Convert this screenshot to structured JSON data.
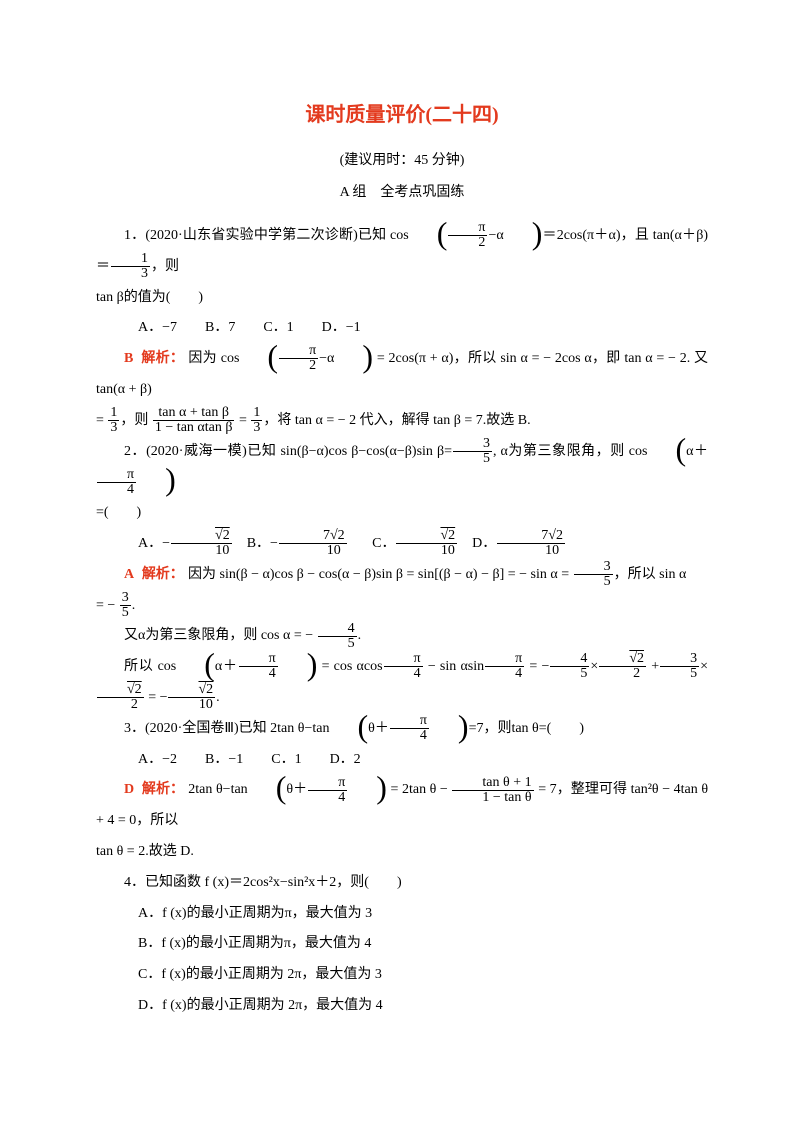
{
  "title": "课时质量评价(二十四)",
  "subtitle": "(建议用时：45 分钟)",
  "section_label": "A 组　全考点巩固练",
  "colors": {
    "accent": "#e33a1e",
    "text": "#000000",
    "bg": "#ffffff"
  },
  "typography": {
    "body_size": 14,
    "title_size": 20,
    "font_family": "SimSun"
  },
  "q1": {
    "number": "1．",
    "source": "(2020·山东省实验中学第二次诊断)",
    "stem_a": "已知 cos",
    "paren_inner_a": "π",
    "paren_inner_b": "2",
    "paren_inner_c": "−α",
    "stem_b": "＝2cos(π＋α)，且 tan(α＋β)＝",
    "frac1_num": "1",
    "frac1_den": "3",
    "stem_c": "，则",
    "line2": "tan β的值为(　　)",
    "choices": "A．−7　　B．7　　C．1　　D．−1",
    "answer": "B",
    "explain_label": "解析：",
    "exp_a": "因为 cos",
    "exp_b": "= 2cos(π + α)，所以 sin α = − 2cos α，即 tan α = − 2. 又 tan(α + β)",
    "exp_c": "=",
    "exp_frac1_num": "1",
    "exp_frac1_den": "3",
    "exp_d": "，则",
    "exp_frac2_num": "tan α + tan β",
    "exp_frac2_den": "1 − tan αtan β",
    "exp_e": "=",
    "exp_frac3_num": "1",
    "exp_frac3_den": "3",
    "exp_f": "，将 tan α = − 2 代入，解得 tan β = 7.故选 B."
  },
  "q2": {
    "number": "2．",
    "source": "(2020·威海一模)",
    "stem_a": "已知 sin(β−α)cos β−cos(α−β)sin β=",
    "frac1_num": "3",
    "frac1_den": "5",
    "stem_b": ", α为第三象限角，则 cos",
    "paren_inner": "α＋",
    "paren_frac_num": "π",
    "paren_frac_den": "4",
    "line2": "=(　　)",
    "choice_a1": "A．−",
    "choice_a_num": "√2",
    "choice_a_den": "10",
    "choice_b1": "B．−",
    "choice_b_num": "7√2",
    "choice_b_den": "10",
    "choice_c1": "C．",
    "choice_c_num": "√2",
    "choice_c_den": "10",
    "choice_d1": "D．",
    "choice_d_num": "7√2",
    "choice_d_den": "10",
    "answer": "A",
    "explain_label": "解析：",
    "exp_a": "因为 sin(β − α)cos β − cos(α − β)sin β = sin[(β − α) − β] = − sin α =",
    "exp_f1_num": "3",
    "exp_f1_den": "5",
    "exp_b": "，所以 sin α",
    "exp_c": "= −",
    "exp_f2_num": "3",
    "exp_f2_den": "5",
    "exp_d": ".",
    "exp_e": "又α为第三象限角，则 cos α = −",
    "exp_f3_num": "4",
    "exp_f3_den": "5",
    "exp_f": ".",
    "exp_g": "所以 cos",
    "exp_h": "= cos αcos",
    "exp_f4_num": "π",
    "exp_f4_den": "4",
    "exp_i": "− sin αsin",
    "exp_j": "= −",
    "exp_f5_num": "4",
    "exp_f5_den": "5",
    "exp_k": "×",
    "exp_f6_num": "√2",
    "exp_f6_den": "2",
    "exp_l": "+",
    "exp_f7_num": "3",
    "exp_f7_den": "5",
    "exp_m": "×",
    "exp_f8_num": "√2",
    "exp_f8_den": "2",
    "exp_n": "= −",
    "exp_f9_num": "√2",
    "exp_f9_den": "10",
    "exp_o": "."
  },
  "q3": {
    "number": "3．",
    "source": "(2020·全国卷Ⅲ)",
    "stem_a": "已知 2tan θ−tan",
    "paren_inner": "θ＋",
    "paren_frac_num": "π",
    "paren_frac_den": "4",
    "stem_b": "=7，则tan θ=(　　)",
    "choices": "A．−2　　B．−1　　C．1　　D．2",
    "answer": "D",
    "explain_label": "解析：",
    "exp_a": "2tan θ−tan",
    "exp_b": "= 2tan θ −",
    "exp_frac_num": "tan θ + 1",
    "exp_frac_den": "1 − tan θ",
    "exp_c": "= 7，整理可得 tan²θ − 4tan θ + 4 = 0，所以",
    "exp_d": "tan θ = 2.故选 D."
  },
  "q4": {
    "number": "4．",
    "stem": "已知函数 f (x)＝2cos²x−sin²x＋2，则(　　)",
    "choice_a": "A．f (x)的最小正周期为π，最大值为 3",
    "choice_b": "B．f (x)的最小正周期为π，最大值为 4",
    "choice_c": "C．f (x)的最小正周期为 2π，最大值为 3",
    "choice_d": "D．f (x)的最小正周期为 2π，最大值为 4"
  }
}
